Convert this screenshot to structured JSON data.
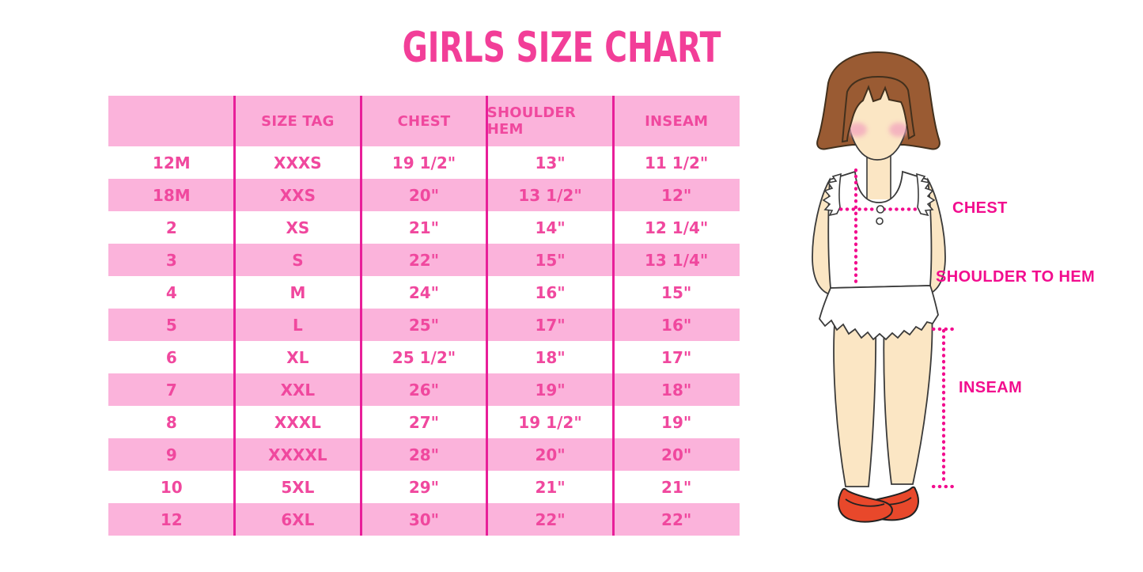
{
  "title": "GIRLS SIZE CHART",
  "chart_data": {
    "type": "table",
    "title": "GIRLS SIZE CHART",
    "columns": [
      "",
      "SIZE TAG",
      "CHEST",
      "SHOULDER HEM",
      "INSEAM"
    ],
    "rows": [
      [
        "12M",
        "XXXS",
        "19 1/2\"",
        "13\"",
        "11 1/2\""
      ],
      [
        "18M",
        "XXS",
        "20\"",
        "13 1/2\"",
        "12\""
      ],
      [
        "2",
        "XS",
        "21\"",
        "14\"",
        "12 1/4\""
      ],
      [
        "3",
        "S",
        "22\"",
        "15\"",
        "13 1/4\""
      ],
      [
        "4",
        "M",
        "24\"",
        "16\"",
        "15\""
      ],
      [
        "5",
        "L",
        "25\"",
        "17\"",
        "16\""
      ],
      [
        "6",
        "XL",
        "25 1/2\"",
        "18\"",
        "17\""
      ],
      [
        "7",
        "XXL",
        "26\"",
        "19\"",
        "18\""
      ],
      [
        "8",
        "XXXL",
        "27\"",
        "19 1/2\"",
        "19\""
      ],
      [
        "9",
        "XXXXL",
        "28\"",
        "20\"",
        "20\""
      ],
      [
        "10",
        "5XL",
        "29\"",
        "21\"",
        "21\""
      ],
      [
        "12",
        "6XL",
        "30\"",
        "22\"",
        "22\""
      ]
    ]
  },
  "figure": {
    "labels": {
      "chest": "CHEST",
      "shoulder_to_hem": "SHOULDER TO HEM",
      "inseam": "INSEAM"
    }
  },
  "colors": {
    "title_pink": "#F23E98",
    "table_text_pink": "#F0489E",
    "row_pink": "#FBB3DB",
    "divider_magenta": "#E81F99",
    "label_magenta": "#F20D8E",
    "hair_brown": "#9A5B33",
    "skin_tone": "#FBE6C4",
    "blush_pink": "#F3A8BE",
    "shoe_red": "#E8482B",
    "outline_dark": "#3A3A3A"
  }
}
